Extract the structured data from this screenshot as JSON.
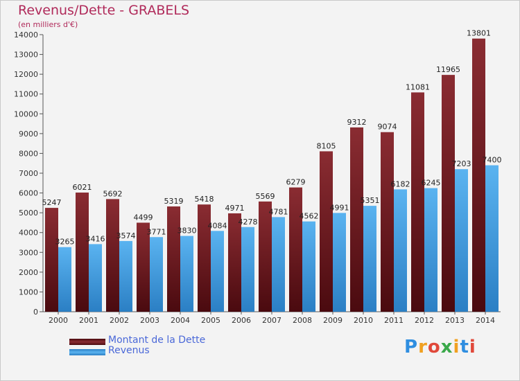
{
  "header": {
    "title": "Revenus/Dette - GRABELS",
    "subtitle": "(en milliers d'€)"
  },
  "legend": {
    "items": [
      {
        "label": "Montant de la Dette",
        "color": "#7a1f25"
      },
      {
        "label": "Revenus",
        "color": "#4aa5e6"
      }
    ]
  },
  "brand": {
    "text": "Proxiti",
    "letters": [
      {
        "char": "P",
        "color": "#2f8ee0"
      },
      {
        "char": "r",
        "color": "#f0a020"
      },
      {
        "char": "o",
        "color": "#e0483a"
      },
      {
        "char": "x",
        "color": "#3aa84a"
      },
      {
        "char": "i",
        "color": "#f0a020"
      },
      {
        "char": "t",
        "color": "#2f8ee0"
      },
      {
        "char": "i",
        "color": "#e0483a"
      }
    ]
  },
  "chart_data": {
    "type": "bar",
    "title": "Revenus/Dette - GRABELS",
    "subtitle": "(en milliers d'€)",
    "categories": [
      "2000",
      "2001",
      "2002",
      "2003",
      "2004",
      "2005",
      "2006",
      "2007",
      "2008",
      "2009",
      "2010",
      "2011",
      "2012",
      "2013",
      "2014"
    ],
    "series": [
      {
        "name": "Montant de la Dette",
        "color": "#7a1f25",
        "values": [
          5247,
          6021,
          5692,
          4499,
          5319,
          5418,
          4971,
          5569,
          6279,
          8105,
          9312,
          9074,
          11081,
          11965,
          13801
        ]
      },
      {
        "name": "Revenus",
        "color": "#4aa5e6",
        "values": [
          3265,
          3416,
          3574,
          3771,
          3830,
          4084,
          4278,
          4781,
          4562,
          4991,
          5351,
          6182,
          6245,
          7203,
          7400
        ]
      }
    ],
    "ylim": [
      0,
      14000
    ],
    "yticks": [
      0,
      1000,
      2000,
      3000,
      4000,
      5000,
      6000,
      7000,
      8000,
      9000,
      10000,
      11000,
      12000,
      13000,
      14000
    ],
    "grid": false,
    "legend_position": "bottom-left"
  }
}
